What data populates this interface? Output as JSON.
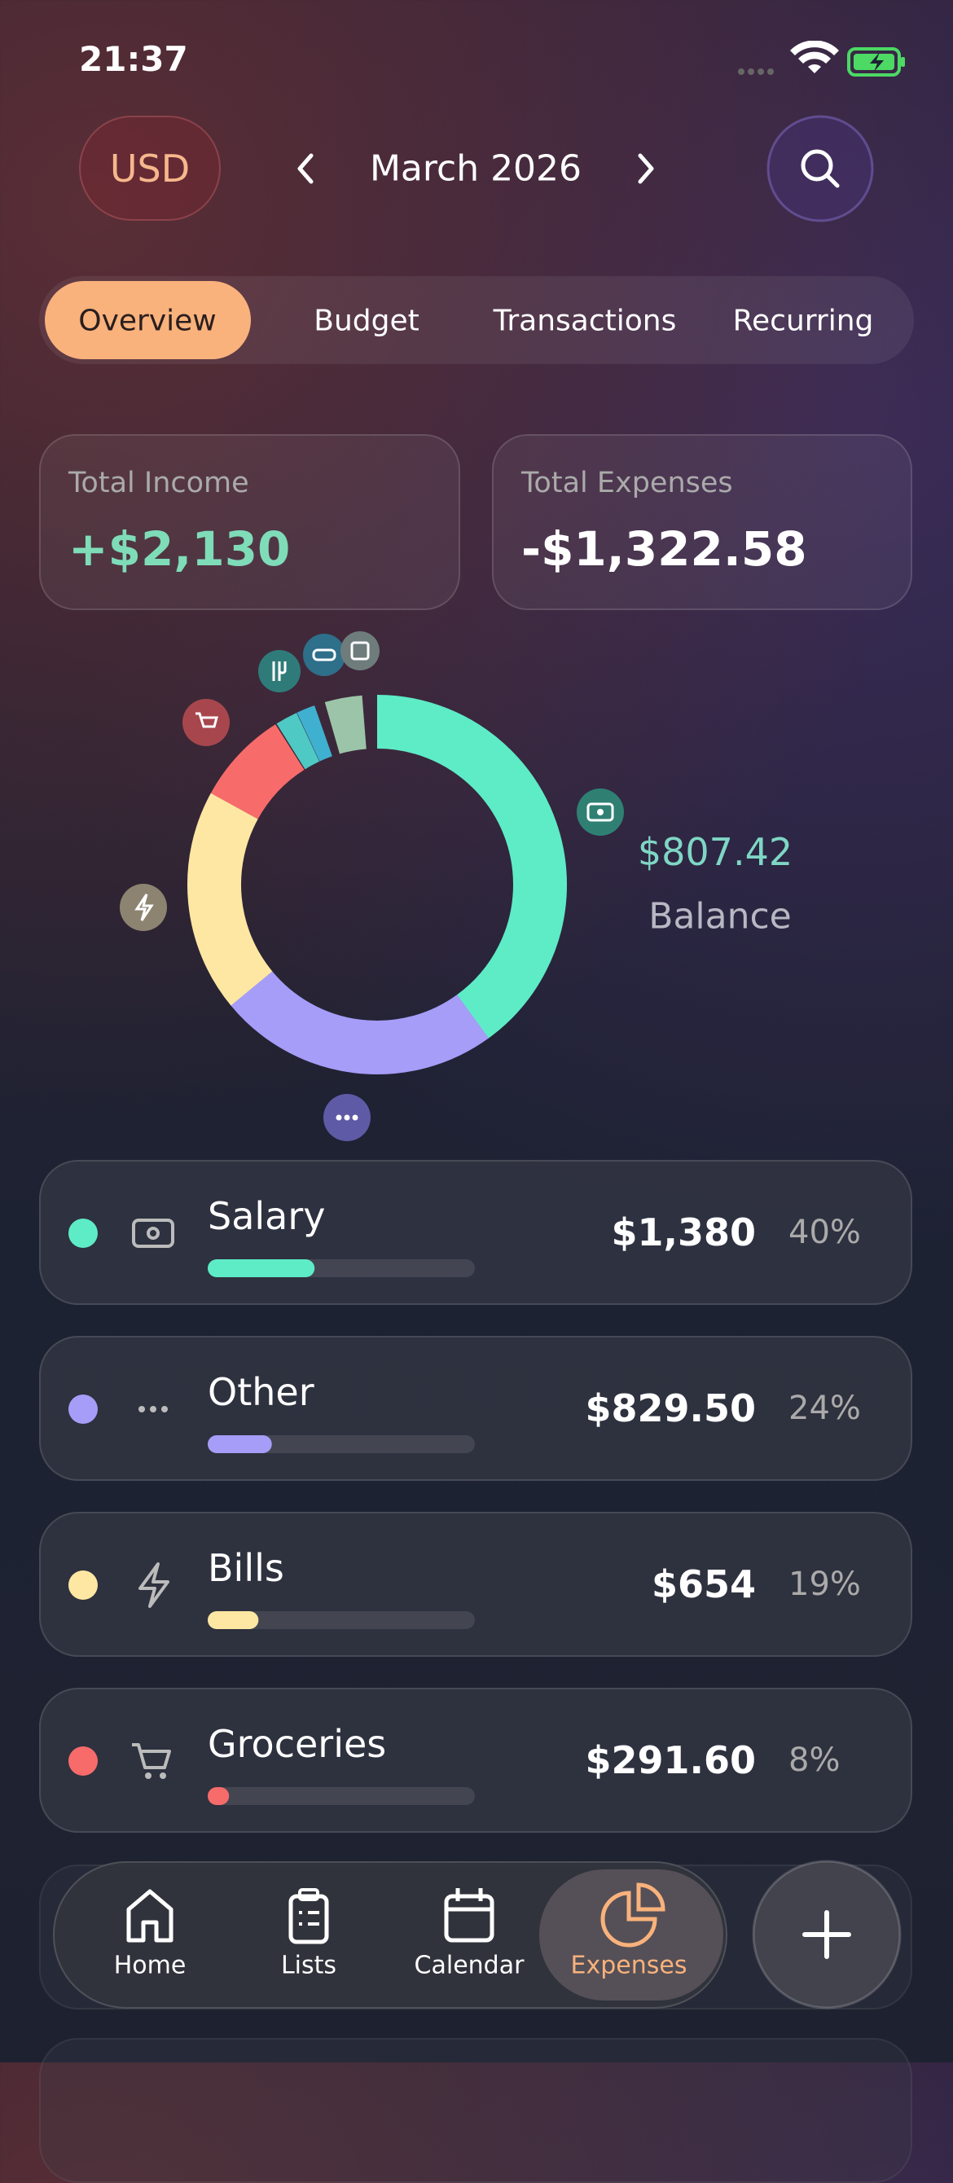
{
  "status_bar": {
    "time": "21:37"
  },
  "header": {
    "currency": "USD",
    "month": "March 2026"
  },
  "tabs": [
    "Overview",
    "Budget",
    "Transactions",
    "Recurring"
  ],
  "summary": {
    "income_label": "Total Income",
    "income": "+$2,130",
    "expenses_label": "Total Expenses",
    "expenses": "-$1,322.58"
  },
  "balance": {
    "amount": "$807.42",
    "label": "Balance"
  },
  "categories": [
    {
      "name": "Salary",
      "amount": "$1,380",
      "share": 40,
      "share_label": "40%",
      "color": "#5eecc6"
    },
    {
      "name": "Other",
      "amount": "$829.50",
      "share": 24,
      "share_label": "24%",
      "color": "#a59df8"
    },
    {
      "name": "Bills",
      "amount": "$654",
      "share": 19,
      "share_label": "19%",
      "color": "#fde7a2"
    },
    {
      "name": "Groceries",
      "amount": "$291.60",
      "share": 8,
      "share_label": "8%",
      "color": "#f76b6b"
    }
  ],
  "nav": [
    "Home",
    "Lists",
    "Calendar",
    "Expenses"
  ]
}
